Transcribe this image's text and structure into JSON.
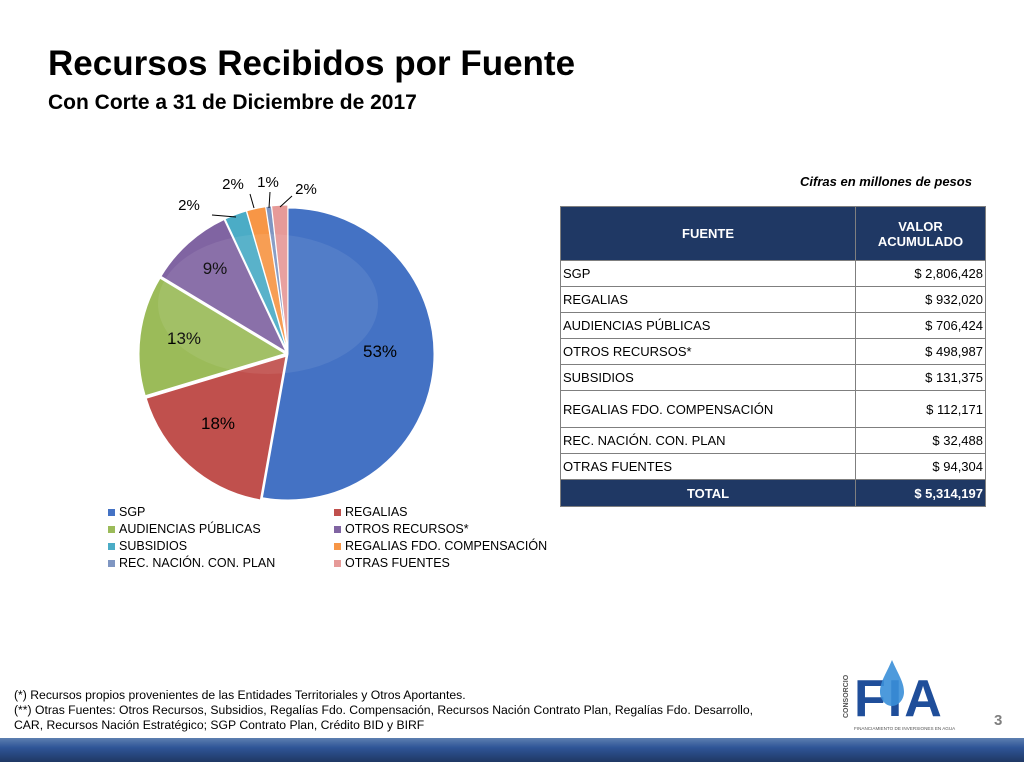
{
  "header": {
    "title": "Recursos Recibidos por Fuente",
    "subtitle": "Con Corte a 31 de Diciembre de 2017"
  },
  "units_note": "Cifras en millones de pesos",
  "chart_data": {
    "type": "pie",
    "categories": [
      "SGP",
      "REGALIAS",
      "AUDIENCIAS PÚBLICAS",
      "OTROS RECURSOS*",
      "SUBSIDIOS",
      "REGALIAS FDO. COMPENSACIÓN",
      "REC. NACIÓN.  CON. PLAN",
      "OTRAS FUENTES"
    ],
    "values": [
      2806428,
      932020,
      706424,
      498987,
      131375,
      112171,
      32488,
      94304
    ],
    "labels": [
      "53%",
      "18%",
      "13%",
      "9%",
      "2%",
      "2%",
      "1%",
      "2%"
    ],
    "colors": [
      "#4472c4",
      "#c0504d",
      "#9bbb59",
      "#8064a2",
      "#4bacc6",
      "#f79646",
      "#7f96c2",
      "#e69a98"
    ],
    "legend_position": "bottom"
  },
  "table": {
    "headers": [
      "FUENTE",
      "VALOR ACUMULADO"
    ],
    "rows": [
      {
        "fuente": "SGP",
        "valor": "$ 2,806,428"
      },
      {
        "fuente": "REGALIAS",
        "valor": "$ 932,020"
      },
      {
        "fuente": "AUDIENCIAS PÚBLICAS",
        "valor": "$ 706,424"
      },
      {
        "fuente": "OTROS RECURSOS*",
        "valor": "$ 498,987"
      },
      {
        "fuente": "SUBSIDIOS",
        "valor": "$ 131,375"
      },
      {
        "fuente": "REGALIAS FDO. COMPENSACIÓN",
        "valor": "$ 112,171"
      },
      {
        "fuente": "REC. NACIÓN.  CON. PLAN",
        "valor": "$ 32,488"
      },
      {
        "fuente": "OTRAS FUENTES",
        "valor": "$ 94,304"
      }
    ],
    "total_label": "TOTAL",
    "total_value": "$ 5,314,197"
  },
  "notes": [
    "(*) Recursos propios provenientes de  las Entidades Territoriales y Otros Aportantes.",
    "(**) Otras Fuentes: Otros Recursos, Subsidios, Regalías Fdo. Compensación, Recursos Nación Contrato Plan, Regalías Fdo. Desarrollo,",
    "CAR, Recursos Nación Estratégico; SGP Contrato Plan, Crédito BID y BIRF"
  ],
  "page_number": "3",
  "logo": {
    "vertical_text": "CONSORCIO",
    "main_text": "FIA",
    "tagline": "FINANCIAMIENTO DE INVERSIONES EN AGUA",
    "icon": "water-drop-icon"
  }
}
